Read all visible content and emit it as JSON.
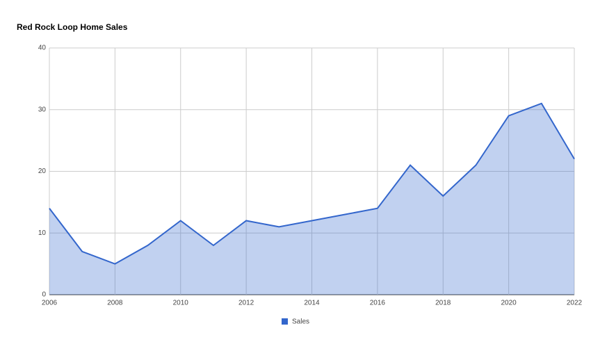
{
  "chart_data": {
    "type": "area",
    "title": "Red Rock Loop Home Sales",
    "x": [
      2006,
      2007,
      2008,
      2009,
      2010,
      2011,
      2012,
      2013,
      2014,
      2015,
      2016,
      2017,
      2018,
      2019,
      2020,
      2021,
      2022
    ],
    "series": [
      {
        "name": "Sales",
        "color": "#3366cc",
        "values": [
          14,
          7,
          5,
          8,
          12,
          8,
          12,
          11,
          12,
          13,
          14,
          21,
          16,
          21,
          29,
          31,
          22
        ]
      }
    ],
    "xlim": [
      2006,
      2022
    ],
    "xticks": [
      2006,
      2008,
      2010,
      2012,
      2014,
      2016,
      2018,
      2020,
      2022
    ],
    "ylim": [
      0,
      40
    ],
    "yticks": [
      0,
      10,
      20,
      30,
      40
    ],
    "grid": true,
    "legend": "bottom"
  }
}
